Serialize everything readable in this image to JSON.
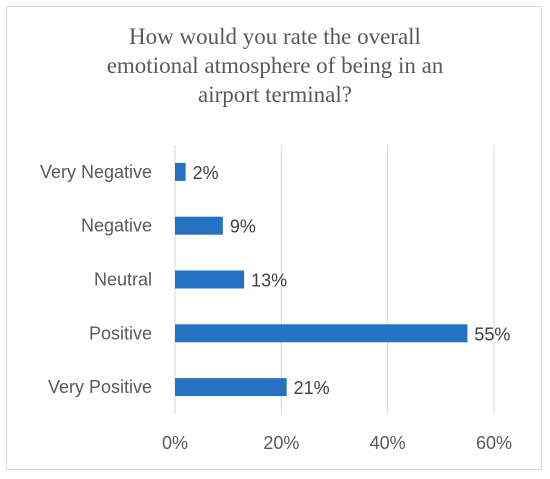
{
  "chart_data": {
    "type": "bar",
    "orientation": "horizontal",
    "title": "How would you rate the overall\nemotional atmosphere of being in an\nairport terminal?",
    "categories": [
      "Very Negative",
      "Negative",
      "Neutral",
      "Positive",
      "Very Positive"
    ],
    "values": [
      2,
      9,
      13,
      55,
      21
    ],
    "value_labels": [
      "2%",
      "9%",
      "13%",
      "55%",
      "21%"
    ],
    "xlim": [
      0,
      60
    ],
    "xticks": [
      "0%",
      "20%",
      "40%",
      "60%"
    ],
    "grid": true,
    "legend": "none",
    "bar_color": "#2672c2",
    "grid_color": "#d9d9d9"
  }
}
